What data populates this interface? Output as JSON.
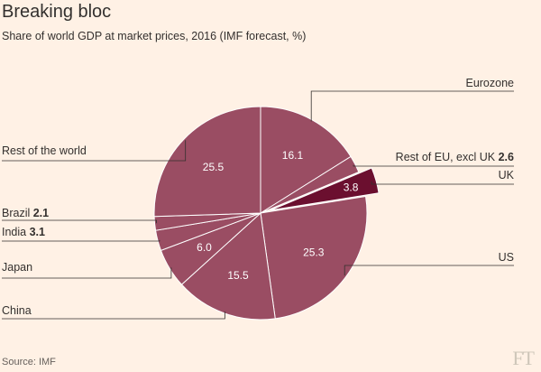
{
  "title": "Breaking bloc",
  "subtitle": "Share of world GDP at market prices, 2016 (IMF forecast, %)",
  "source": "Source: IMF",
  "logo": "FT",
  "colors": {
    "slice": "#9a4d63",
    "highlight": "#6b0f2f",
    "background": "#fff1e5",
    "line": "#33302e"
  },
  "chart_data": {
    "type": "pie",
    "slices": [
      {
        "name": "Eurozone",
        "value": 16.1,
        "value_label": "16.1",
        "label": "Eurozone",
        "bold": ""
      },
      {
        "name": "Rest of EU, excl UK",
        "value": 2.6,
        "value_label": "",
        "label": "Rest of EU, excl UK",
        "bold": "2.6"
      },
      {
        "name": "UK",
        "value": 3.8,
        "value_label": "3.8",
        "label": "UK",
        "bold": "",
        "highlight": true
      },
      {
        "name": "US",
        "value": 25.3,
        "value_label": "25.3",
        "label": "US",
        "bold": ""
      },
      {
        "name": "China",
        "value": 15.5,
        "value_label": "15.5",
        "label": "China",
        "bold": ""
      },
      {
        "name": "Japan",
        "value": 6.0,
        "value_label": "6.0",
        "label": "Japan",
        "bold": ""
      },
      {
        "name": "India",
        "value": 3.1,
        "value_label": "",
        "label": "India",
        "bold": "3.1"
      },
      {
        "name": "Brazil",
        "value": 2.1,
        "value_label": "",
        "label": "Brazil",
        "bold": "2.1"
      },
      {
        "name": "Rest of the world",
        "value": 25.5,
        "value_label": "25.5",
        "label": "Rest of the world",
        "bold": ""
      }
    ]
  }
}
